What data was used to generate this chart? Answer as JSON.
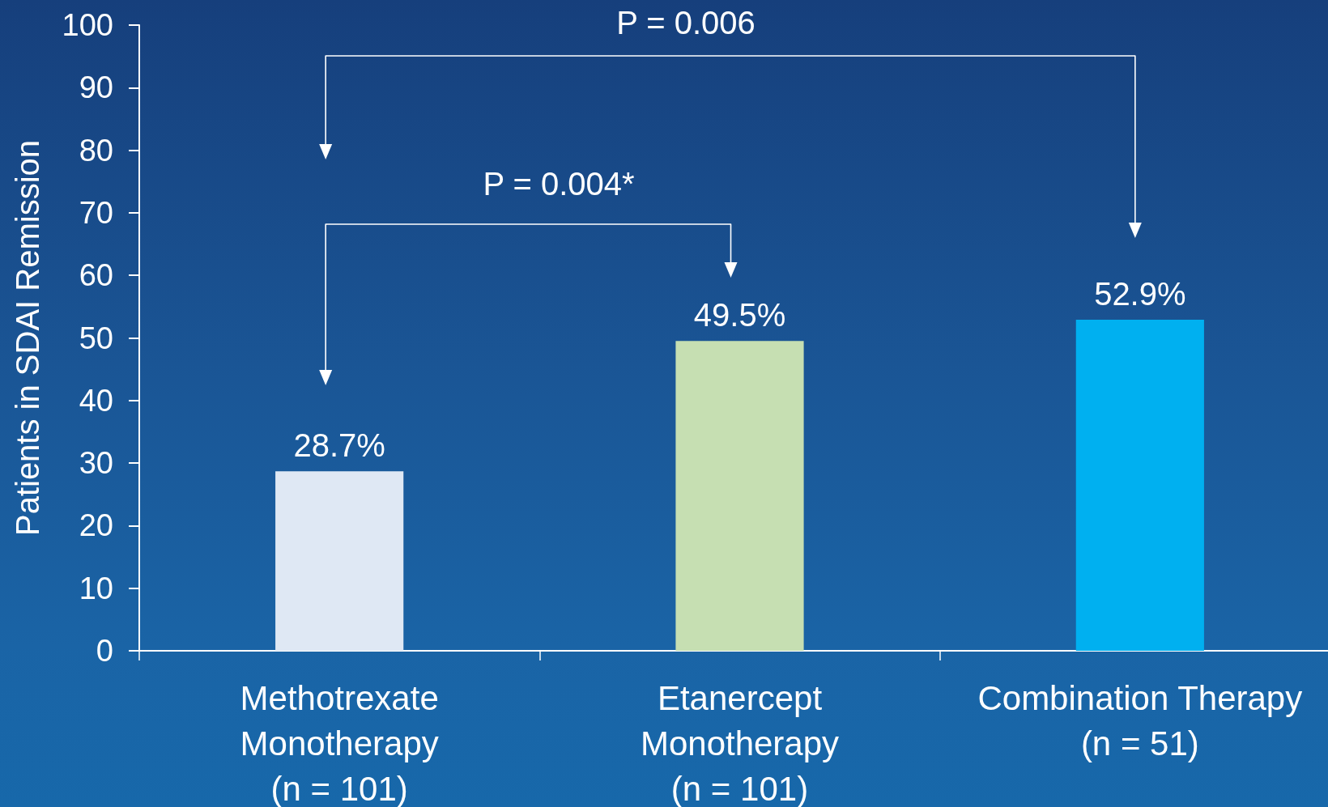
{
  "chart_data": {
    "type": "bar",
    "categories": [
      "Methotrexate\nMonotherapy\n(n = 101)",
      "Etanercept\nMonotherapy\n(n = 101)",
      "Combination Therapy\n(n = 51)"
    ],
    "values": [
      28.7,
      49.5,
      52.9
    ],
    "colors": [
      "#dfe8f4",
      "#c6dfb2",
      "#00b0f0"
    ],
    "value_labels": [
      "28.7%",
      "49.5%",
      "52.9%"
    ],
    "ylabel": "Patients in SDAI Remission",
    "ylim": [
      0,
      100
    ],
    "yticks": [
      0,
      10,
      20,
      30,
      40,
      50,
      60,
      70,
      80,
      90,
      100
    ],
    "annotations": [
      "P = 0.006",
      "P = 0.004*"
    ]
  }
}
